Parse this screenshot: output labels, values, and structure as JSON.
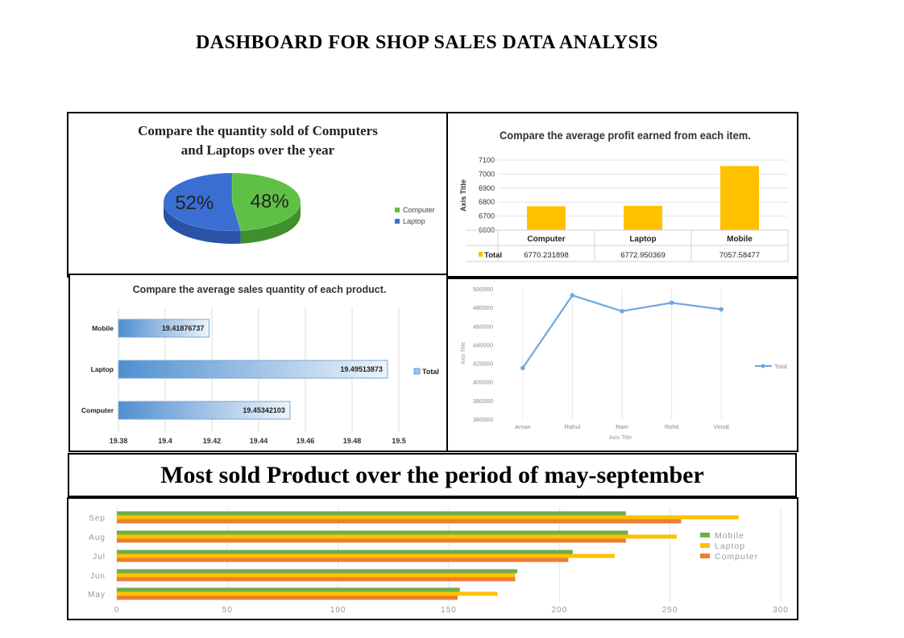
{
  "page": {
    "title": "DASHBOARD  FOR  SHOP  SALES  DATA   ANALYSIS"
  },
  "banner": {
    "text": "Most sold Product over the period of may-september"
  },
  "colors": {
    "computer_pie": "#5ec045",
    "laptop_pie": "#3a6ed3",
    "bar_gold": "#ffc000",
    "bar_blue": "#4f8fd0",
    "line_blue": "#6fa8dc",
    "mobile": "#70ad47",
    "laptop": "#ffc000",
    "computer": "#ed7d31"
  },
  "chart_data": [
    {
      "id": "pie",
      "type": "pie",
      "title_line1": "Compare the quantity sold of Computers",
      "title_line2": "and Laptops over the year",
      "slices": [
        {
          "label": "Computer",
          "value": 48,
          "display": "48%"
        },
        {
          "label": "Laptop",
          "value": 52,
          "display": "52%"
        }
      ],
      "legend_position": "right"
    },
    {
      "id": "profit",
      "type": "bar",
      "title": "Compare the average profit earned from each item.",
      "ylabel": "Axis Title",
      "ylim": [
        6600,
        7100
      ],
      "yticks": [
        "7100",
        "7000",
        "6900",
        "6800",
        "6700",
        "6600"
      ],
      "categories": [
        "Computer",
        "Laptop",
        "Mobile"
      ],
      "values": [
        6770.231898,
        6772.950369,
        7057.58477
      ],
      "table_series": "Total",
      "table_values": [
        "6770.231898",
        "6772.950369",
        "7057.58477"
      ],
      "grid": true
    },
    {
      "id": "avgqty",
      "type": "bar",
      "orientation": "horizontal",
      "title": "Compare the average sales quantity of each product.",
      "categories": [
        "Mobile",
        "Laptop",
        "Computer"
      ],
      "values": [
        19.41876737,
        19.49513873,
        19.45342103
      ],
      "labels": [
        "19.41876737",
        "19.49513873",
        "19.45342103"
      ],
      "xlim": [
        19.38,
        19.5
      ],
      "xticks": [
        "19.38",
        "19.4",
        "19.42",
        "19.44",
        "19.46",
        "19.48",
        "19.5"
      ],
      "legend": "Total",
      "legend_position": "right",
      "grid": true
    },
    {
      "id": "sales_line",
      "type": "line",
      "categories": [
        "Aman",
        "Rahul",
        "Ram",
        "Rohit",
        "Vinod"
      ],
      "values": [
        415000,
        493000,
        476000,
        485000,
        478000
      ],
      "ylim": [
        360000,
        500000
      ],
      "yticks": [
        "500000",
        "480000",
        "460000",
        "440000",
        "420000",
        "400000",
        "380000",
        "360000"
      ],
      "xlabel": "Axis Title",
      "ylabel": "Axis Title",
      "legend": "Total",
      "legend_position": "right",
      "grid": true
    },
    {
      "id": "monthly",
      "type": "bar",
      "orientation": "horizontal",
      "categories": [
        "Sep",
        "Aug",
        "Jul",
        "Jun",
        "May"
      ],
      "series": [
        {
          "name": "Mobile",
          "values": [
            230,
            231,
            206,
            181,
            155
          ]
        },
        {
          "name": "Laptop",
          "values": [
            281,
            253,
            225,
            180,
            172
          ]
        },
        {
          "name": "Computer",
          "values": [
            255,
            230,
            204,
            180,
            154
          ]
        }
      ],
      "xlim": [
        0,
        300
      ],
      "xticks": [
        "0",
        "50",
        "100",
        "150",
        "200",
        "250",
        "300"
      ],
      "legend_position": "right",
      "grid": true
    }
  ]
}
